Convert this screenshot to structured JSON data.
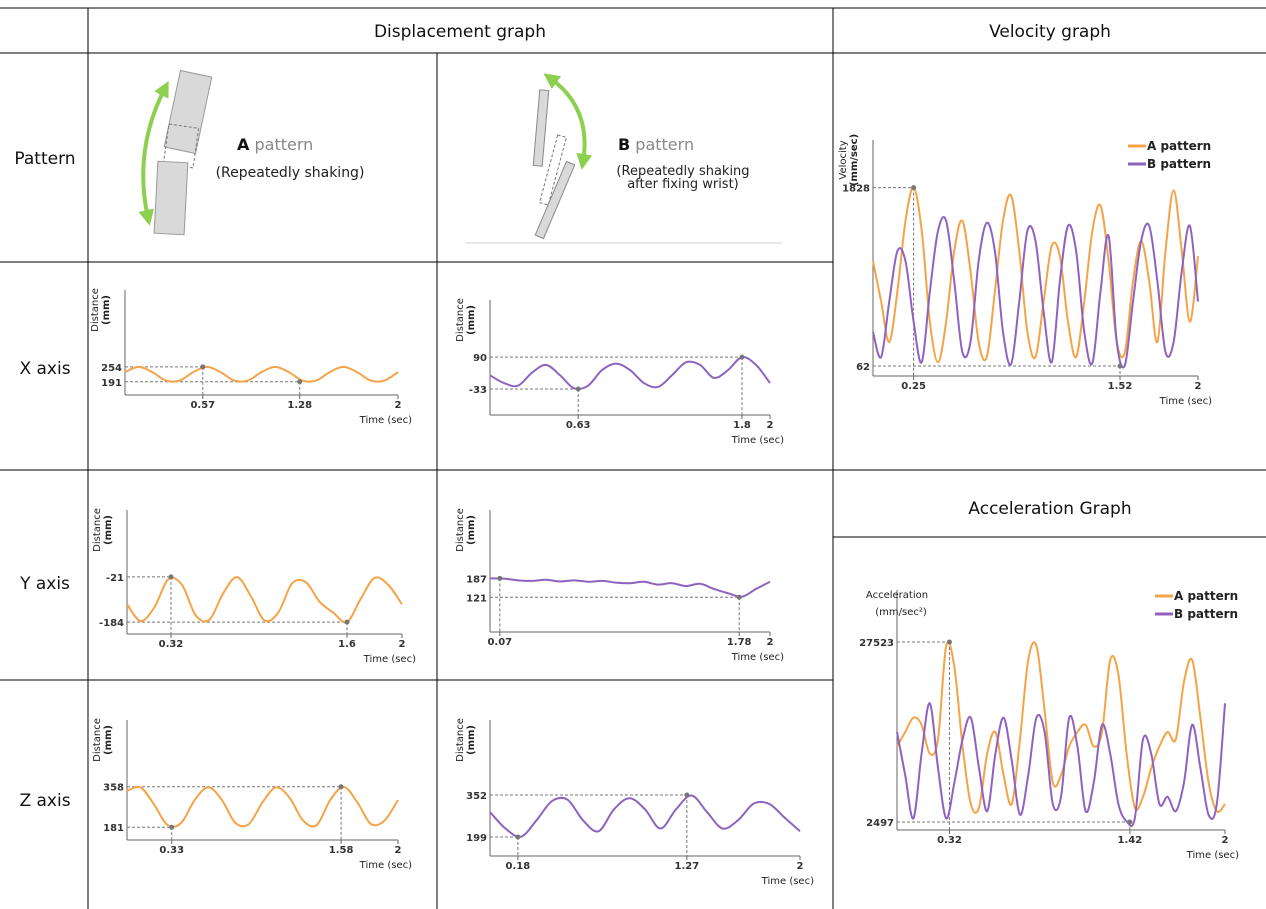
{
  "table": {
    "headers": [
      "Displacement graph",
      "Velocity graph",
      "Acceleration Graph"
    ],
    "row_labels": [
      "Pattern",
      "X axis",
      "Y axis",
      "Z axis"
    ],
    "patterns": [
      {
        "letter": "A",
        "word": "pattern",
        "note": [
          "(Repeatedly shaking)"
        ]
      },
      {
        "letter": "B",
        "word": "pattern",
        "note": [
          "(Repeatedly shaking",
          "after fixing  wrist)"
        ]
      }
    ]
  },
  "chart_data": [
    {
      "type": "line",
      "ylabel": [
        "Distance",
        "(mm)"
      ],
      "xlabel": "Time (sec)",
      "x": [
        0,
        0.1,
        0.2,
        0.3,
        0.4,
        0.5,
        0.6,
        0.7,
        0.8,
        0.9,
        1,
        1.1,
        1.2,
        1.3,
        1.4,
        1.5,
        1.6,
        1.7,
        1.8,
        1.9,
        2
      ],
      "series": [
        {
          "color": "#f5a347",
          "values": [
            232,
            254,
            232,
            196,
            196,
            232,
            254,
            232,
            196,
            196,
            232,
            254,
            232,
            196,
            196,
            232,
            254,
            232,
            196,
            196,
            232
          ]
        }
      ],
      "xlim": [
        0,
        2
      ],
      "ylim": [
        135,
        580
      ],
      "xticks": [
        0.57,
        1.28,
        2
      ],
      "yticks": [
        254,
        191
      ]
    },
    {
      "type": "line",
      "ylabel": [
        "Distance",
        "(mm)"
      ],
      "xlabel": "Time (sec)",
      "x": [
        0,
        0.1,
        0.2,
        0.3,
        0.4,
        0.5,
        0.6,
        0.7,
        0.8,
        0.9,
        1,
        1.1,
        1.2,
        1.3,
        1.4,
        1.5,
        1.6,
        1.7,
        1.8,
        1.9,
        2
      ],
      "series": [
        {
          "color": "#8e63c0",
          "values": [
            20,
            -10,
            -20,
            30,
            60,
            20,
            -30,
            -20,
            40,
            65,
            40,
            -10,
            -25,
            20,
            70,
            60,
            10,
            40,
            90,
            60,
            -10
          ]
        }
      ],
      "xlim": [
        0,
        2
      ],
      "ylim": [
        -133,
        310
      ],
      "xticks": [
        0.63,
        1.8,
        2
      ],
      "yticks": [
        -33,
        90
      ]
    },
    {
      "type": "line",
      "ylabel": [
        "Distance",
        "(mm)"
      ],
      "xlabel": "Time (sec)",
      "x": [
        0,
        0.1,
        0.2,
        0.3,
        0.4,
        0.5,
        0.6,
        0.7,
        0.8,
        0.9,
        1,
        1.1,
        1.2,
        1.3,
        1.4,
        1.5,
        1.6,
        1.7,
        1.8,
        1.9,
        2
      ],
      "series": [
        {
          "color": "#f5a347",
          "values": [
            -120,
            -180,
            -130,
            -30,
            -50,
            -160,
            -175,
            -80,
            -22,
            -90,
            -178,
            -150,
            -45,
            -40,
            -110,
            -150,
            -184,
            -100,
            -25,
            -50,
            -120
          ]
        }
      ],
      "xlim": [
        0,
        2
      ],
      "ylim": [
        -227,
        220
      ],
      "xticks": [
        0.32,
        1.6,
        2
      ],
      "yticks": [
        -21,
        -184
      ]
    },
    {
      "type": "line",
      "ylabel": [
        "Distance",
        "(mm)"
      ],
      "xlabel": "Time (sec)",
      "x": [
        0,
        0.1,
        0.2,
        0.3,
        0.4,
        0.5,
        0.6,
        0.7,
        0.8,
        0.9,
        1,
        1.1,
        1.2,
        1.3,
        1.4,
        1.5,
        1.6,
        1.7,
        1.8,
        1.9,
        2
      ],
      "series": [
        {
          "color": "#8e63c0",
          "values": [
            187,
            186,
            180,
            178,
            182,
            176,
            180,
            175,
            178,
            172,
            170,
            175,
            165,
            170,
            160,
            168,
            150,
            135,
            123,
            150,
            175
          ]
        }
      ],
      "xlim": [
        0,
        2
      ],
      "ylim": [
        0,
        425
      ],
      "xticks": [
        0.07,
        1.78,
        2
      ],
      "yticks": [
        187,
        121
      ]
    },
    {
      "type": "line",
      "ylabel": [
        "Distance",
        "(mm)"
      ],
      "xlabel": "Time (sec)",
      "x": [
        0,
        0.1,
        0.2,
        0.3,
        0.4,
        0.5,
        0.6,
        0.7,
        0.8,
        0.9,
        1,
        1.1,
        1.2,
        1.3,
        1.4,
        1.5,
        1.6,
        1.7,
        1.8,
        1.9,
        2
      ],
      "series": [
        {
          "color": "#f5a347",
          "values": [
            340,
            355,
            280,
            190,
            200,
            300,
            356,
            300,
            200,
            195,
            290,
            355,
            310,
            210,
            190,
            300,
            357,
            290,
            195,
            210,
            300
          ]
        }
      ],
      "xlim": [
        0,
        2
      ],
      "ylim": [
        125,
        650
      ],
      "xticks": [
        0.33,
        1.58,
        2
      ],
      "yticks": [
        181,
        358
      ]
    },
    {
      "type": "line",
      "ylabel": [
        "Distance",
        "(mm)"
      ],
      "xlabel": "Time (sec)",
      "x": [
        0,
        0.1,
        0.2,
        0.3,
        0.4,
        0.5,
        0.6,
        0.7,
        0.8,
        0.9,
        1,
        1.1,
        1.2,
        1.3,
        1.4,
        1.5,
        1.6,
        1.7,
        1.8,
        1.9,
        2
      ],
      "series": [
        {
          "color": "#8e63c0",
          "values": [
            290,
            230,
            200,
            260,
            330,
            335,
            260,
            220,
            300,
            340,
            300,
            230,
            300,
            350,
            290,
            230,
            260,
            320,
            320,
            270,
            220
          ]
        }
      ],
      "xlim": [
        0,
        2
      ],
      "ylim": [
        130,
        625
      ],
      "xticks": [
        0.18,
        1.27,
        2
      ],
      "yticks": [
        199,
        352
      ]
    },
    {
      "type": "line",
      "ylabel": [
        "Velocity",
        "(mm/sec)"
      ],
      "xlabel": "Time (sec)",
      "legend": "upper right",
      "x": [
        0,
        0.05,
        0.1,
        0.15,
        0.2,
        0.25,
        0.3,
        0.35,
        0.4,
        0.45,
        0.5,
        0.55,
        0.6,
        0.65,
        0.7,
        0.75,
        0.8,
        0.85,
        0.9,
        0.95,
        1,
        1.05,
        1.1,
        1.15,
        1.2,
        1.25,
        1.3,
        1.35,
        1.4,
        1.45,
        1.5,
        1.55,
        1.6,
        1.65,
        1.7,
        1.75,
        1.8,
        1.85,
        1.9,
        1.95,
        2
      ],
      "series": [
        {
          "name": "A pattern",
          "color": "#f5a347",
          "values": [
            1100,
            700,
            300,
            800,
            1500,
            1828,
            1400,
            500,
            100,
            500,
            1200,
            1500,
            1000,
            300,
            150,
            800,
            1500,
            1750,
            1200,
            400,
            150,
            700,
            1250,
            1150,
            500,
            150,
            700,
            1400,
            1650,
            1100,
            300,
            200,
            900,
            1300,
            900,
            300,
            1200,
            1800,
            1200,
            500,
            1150
          ]
        },
        {
          "name": "B pattern",
          "color": "#8e63c0",
          "values": [
            400,
            150,
            700,
            1200,
            1100,
            500,
            100,
            800,
            1400,
            1500,
            900,
            200,
            300,
            1100,
            1480,
            1200,
            400,
            80,
            700,
            1400,
            1300,
            600,
            100,
            900,
            1450,
            1200,
            400,
            90,
            800,
            1350,
            300,
            70,
            700,
            1300,
            1450,
            900,
            200,
            300,
            1000,
            1450,
            700
          ]
        }
      ],
      "xlim": [
        0,
        2
      ],
      "ylim": [
        -37,
        2300
      ],
      "xticks": [
        0.25,
        1.52,
        2
      ],
      "yticks": [
        1828,
        62
      ]
    },
    {
      "type": "line",
      "ylabel": [
        "Acceleration",
        "(mm/sec²)"
      ],
      "xlabel": "Time (sec)",
      "legend": "upper right",
      "x": [
        0,
        0.05,
        0.1,
        0.15,
        0.2,
        0.25,
        0.3,
        0.35,
        0.4,
        0.45,
        0.5,
        0.55,
        0.6,
        0.65,
        0.7,
        0.75,
        0.8,
        0.85,
        0.9,
        0.95,
        1,
        1.05,
        1.1,
        1.15,
        1.2,
        1.25,
        1.3,
        1.35,
        1.4,
        1.45,
        1.5,
        1.55,
        1.6,
        1.65,
        1.7,
        1.75,
        1.8,
        1.85,
        1.9,
        1.95,
        2
      ],
      "series": [
        {
          "name": "A pattern",
          "color": "#f5a347",
          "values": [
            13000,
            15000,
            17000,
            16000,
            12000,
            14000,
            27000,
            24000,
            13000,
            5000,
            4500,
            12000,
            15000,
            9000,
            5000,
            14000,
            25000,
            27000,
            18000,
            8000,
            9000,
            13000,
            15000,
            16000,
            13000,
            15000,
            25000,
            23000,
            12000,
            4500,
            6000,
            10000,
            13000,
            15000,
            14000,
            22000,
            25000,
            17000,
            8000,
            4000,
            5000
          ]
        },
        {
          "name": "B pattern",
          "color": "#8e63c0",
          "values": [
            15000,
            9000,
            3000,
            12000,
            19000,
            10000,
            3000,
            8000,
            14000,
            17000,
            10000,
            4000,
            12000,
            17000,
            11000,
            3500,
            9000,
            17000,
            15000,
            5000,
            6000,
            17000,
            13000,
            4000,
            8000,
            16000,
            12000,
            5000,
            2600,
            3000,
            14000,
            12000,
            5000,
            6000,
            4000,
            8000,
            16000,
            10000,
            3500,
            5000,
            19000
          ]
        }
      ],
      "xlim": [
        0,
        2
      ],
      "ylim": [
        1385,
        34750
      ],
      "xticks": [
        0.32,
        1.42,
        2
      ],
      "yticks": [
        27523,
        2497
      ]
    }
  ]
}
